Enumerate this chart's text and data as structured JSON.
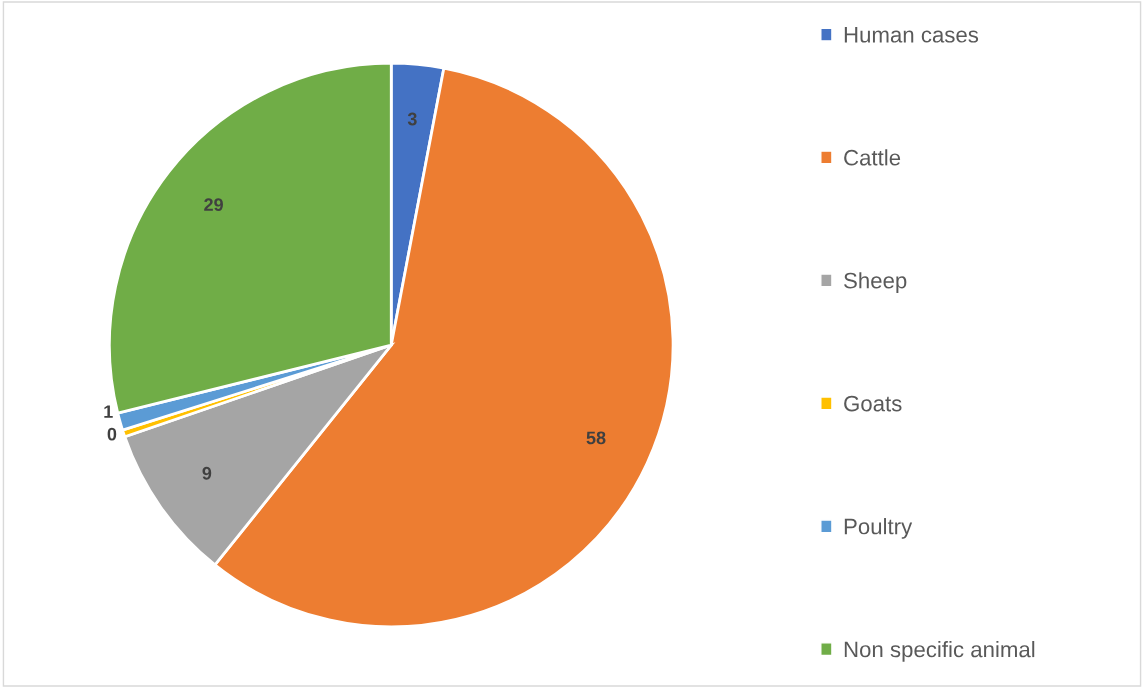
{
  "chart_data": {
    "type": "pie",
    "categories": [
      "Human cases",
      "Cattle",
      "Sheep",
      "Goats",
      "Poultry",
      "Non specific animal"
    ],
    "values": [
      3,
      58,
      9,
      0.4,
      1,
      29
    ],
    "value_labels": [
      "3",
      "58",
      "9",
      "0",
      "1",
      "29"
    ],
    "colors": [
      "#4472c4",
      "#ed7d31",
      "#a5a5a5",
      "#ffc000",
      "#5b9bd5",
      "#70ad47"
    ],
    "legend": "right"
  }
}
